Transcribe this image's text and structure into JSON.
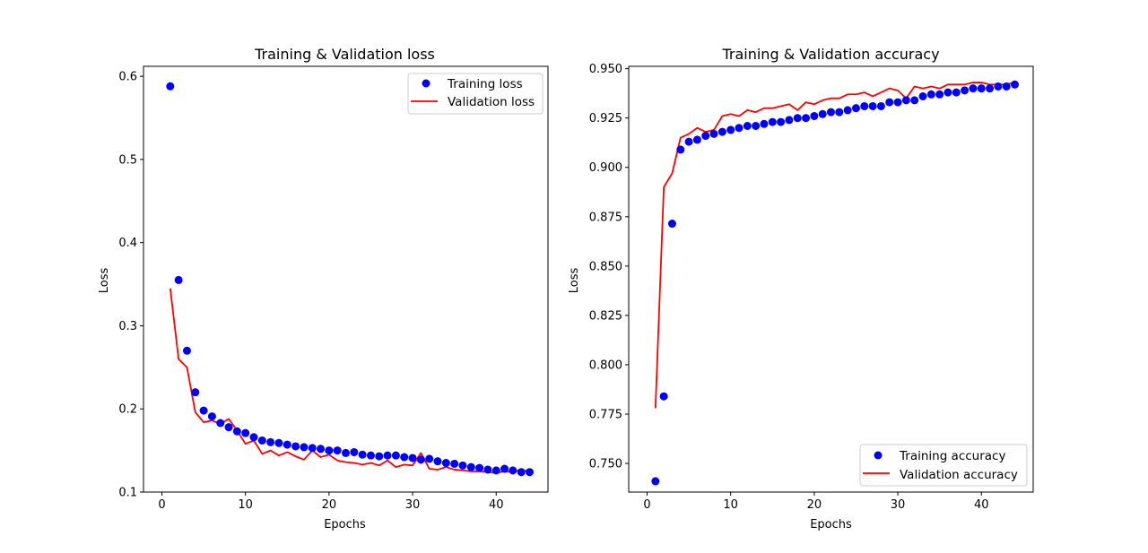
{
  "chart_data": [
    {
      "type": "line",
      "title": "Training & Validation loss",
      "xlabel": "Epochs",
      "ylabel": "Loss",
      "xlim": [
        -2.2,
        46.2
      ],
      "ylim": [
        0.1,
        0.612
      ],
      "xticks": [
        0,
        10,
        20,
        30,
        40
      ],
      "yticks": [
        0.1,
        0.2,
        0.3,
        0.4,
        0.5,
        0.6
      ],
      "ytick_format": 1,
      "legend_position": "top-right",
      "grid": false,
      "x": [
        1,
        2,
        3,
        4,
        5,
        6,
        7,
        8,
        9,
        10,
        11,
        12,
        13,
        14,
        15,
        16,
        17,
        18,
        19,
        20,
        21,
        22,
        23,
        24,
        25,
        26,
        27,
        28,
        29,
        30,
        31,
        32,
        33,
        34,
        35,
        36,
        37,
        38,
        39,
        40,
        41,
        42,
        43,
        44
      ],
      "series": [
        {
          "name": "Training loss",
          "style": "points",
          "color": "#0000ff",
          "values": [
            0.588,
            0.355,
            0.27,
            0.22,
            0.198,
            0.191,
            0.183,
            0.178,
            0.173,
            0.171,
            0.166,
            0.162,
            0.16,
            0.159,
            0.157,
            0.155,
            0.154,
            0.153,
            0.152,
            0.15,
            0.15,
            0.147,
            0.148,
            0.145,
            0.144,
            0.143,
            0.144,
            0.144,
            0.142,
            0.141,
            0.139,
            0.14,
            0.137,
            0.135,
            0.134,
            0.132,
            0.13,
            0.129,
            0.127,
            0.126,
            0.128,
            0.126,
            0.124,
            0.124
          ]
        },
        {
          "name": "Validation loss",
          "style": "line",
          "color": "#ff0000",
          "values": [
            0.345,
            0.26,
            0.25,
            0.196,
            0.184,
            0.186,
            0.182,
            0.188,
            0.174,
            0.158,
            0.162,
            0.146,
            0.15,
            0.144,
            0.148,
            0.143,
            0.139,
            0.15,
            0.142,
            0.145,
            0.138,
            0.136,
            0.135,
            0.133,
            0.135,
            0.132,
            0.138,
            0.13,
            0.133,
            0.132,
            0.147,
            0.128,
            0.127,
            0.13,
            0.127,
            0.126,
            0.125,
            0.125,
            0.124,
            0.123,
            0.125,
            0.124,
            0.127,
            0.124
          ]
        }
      ]
    },
    {
      "type": "line",
      "title": "Training & Validation accuracy",
      "xlabel": "Epochs",
      "ylabel": "Loss",
      "xlim": [
        -2.2,
        46.2
      ],
      "ylim": [
        0.7355,
        0.9512
      ],
      "xticks": [
        0,
        10,
        20,
        30,
        40
      ],
      "yticks": [
        0.75,
        0.775,
        0.8,
        0.825,
        0.85,
        0.875,
        0.9,
        0.925,
        0.95
      ],
      "ytick_format": 3,
      "legend_position": "bottom-right",
      "grid": false,
      "x": [
        1,
        2,
        3,
        4,
        5,
        6,
        7,
        8,
        9,
        10,
        11,
        12,
        13,
        14,
        15,
        16,
        17,
        18,
        19,
        20,
        21,
        22,
        23,
        24,
        25,
        26,
        27,
        28,
        29,
        30,
        31,
        32,
        33,
        34,
        35,
        36,
        37,
        38,
        39,
        40,
        41,
        42,
        43,
        44
      ],
      "series": [
        {
          "name": "Training accuracy",
          "style": "points",
          "color": "#0000ff",
          "values": [
            0.741,
            0.784,
            0.8715,
            0.909,
            0.913,
            0.914,
            0.916,
            0.917,
            0.918,
            0.919,
            0.92,
            0.921,
            0.921,
            0.922,
            0.923,
            0.923,
            0.924,
            0.925,
            0.925,
            0.926,
            0.927,
            0.928,
            0.928,
            0.929,
            0.93,
            0.931,
            0.931,
            0.931,
            0.933,
            0.933,
            0.934,
            0.934,
            0.936,
            0.937,
            0.937,
            0.938,
            0.938,
            0.939,
            0.94,
            0.94,
            0.94,
            0.941,
            0.941,
            0.942
          ]
        },
        {
          "name": "Validation accuracy",
          "style": "line",
          "color": "#ff0000",
          "values": [
            0.778,
            0.89,
            0.897,
            0.915,
            0.917,
            0.92,
            0.918,
            0.919,
            0.926,
            0.927,
            0.926,
            0.929,
            0.928,
            0.93,
            0.93,
            0.931,
            0.932,
            0.929,
            0.933,
            0.932,
            0.934,
            0.935,
            0.935,
            0.937,
            0.937,
            0.938,
            0.936,
            0.938,
            0.94,
            0.939,
            0.935,
            0.941,
            0.94,
            0.941,
            0.94,
            0.942,
            0.942,
            0.942,
            0.943,
            0.943,
            0.942,
            0.942,
            0.942,
            0.943
          ]
        }
      ]
    }
  ]
}
